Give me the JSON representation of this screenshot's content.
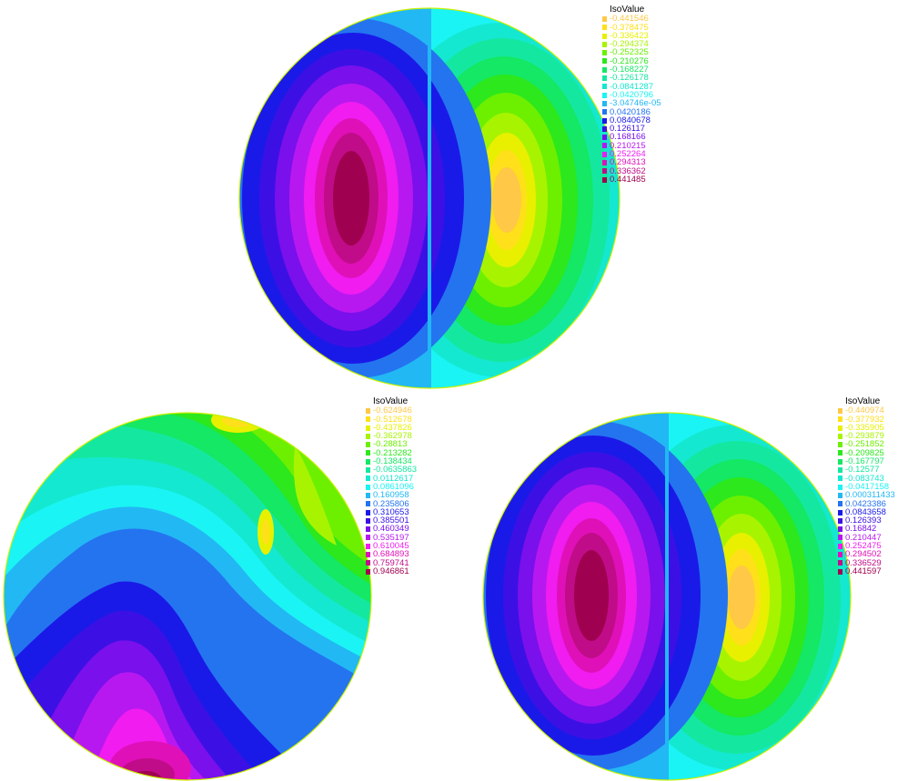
{
  "plots": [
    {
      "legend_title": "IsoValue",
      "legend": [
        {
          "label": "-0.441546",
          "color": "#ffc846"
        },
        {
          "label": "-0.378475",
          "color": "#ffe01a"
        },
        {
          "label": "-0.336423",
          "color": "#e8f000"
        },
        {
          "label": "-0.294374",
          "color": "#a8f400"
        },
        {
          "label": "-0.252325",
          "color": "#6cf000"
        },
        {
          "label": "-0.210276",
          "color": "#2ce81c"
        },
        {
          "label": "-0.168227",
          "color": "#14e864"
        },
        {
          "label": "-0.126178",
          "color": "#14e8a0"
        },
        {
          "label": "-0.0841287",
          "color": "#14e8d0"
        },
        {
          "label": "-0.0420796",
          "color": "#1af4f4"
        },
        {
          "label": "-3.04746e-05",
          "color": "#22b8f4"
        },
        {
          "label": "0.0420186",
          "color": "#2474f0"
        },
        {
          "label": "0.0840678",
          "color": "#1a1ae8"
        },
        {
          "label": "0.126117",
          "color": "#3c10e4"
        },
        {
          "label": "0.168166",
          "color": "#7a10ec"
        },
        {
          "label": "0.210215",
          "color": "#b818f0"
        },
        {
          "label": "0.252264",
          "color": "#f01cf0"
        },
        {
          "label": "0.294313",
          "color": "#e010b8"
        },
        {
          "label": "0.336362",
          "color": "#c00c88"
        },
        {
          "label": "0.441485",
          "color": "#a00050"
        }
      ]
    },
    {
      "legend_title": "IsoValue",
      "legend": [
        {
          "label": "-0.624946",
          "color": "#ffc846"
        },
        {
          "label": "-0.512678",
          "color": "#ffe01a"
        },
        {
          "label": "-0.437826",
          "color": "#e8f000"
        },
        {
          "label": "-0.362978",
          "color": "#a8f400"
        },
        {
          "label": "-0.28813",
          "color": "#6cf000"
        },
        {
          "label": "-0.213282",
          "color": "#2ce81c"
        },
        {
          "label": "-0.138434",
          "color": "#14e864"
        },
        {
          "label": "-0.0635863",
          "color": "#14e8a0"
        },
        {
          "label": "0.0112617",
          "color": "#14e8d0"
        },
        {
          "label": "0.0861096",
          "color": "#1af4f4"
        },
        {
          "label": "0.160958",
          "color": "#22b8f4"
        },
        {
          "label": "0.235806",
          "color": "#2474f0"
        },
        {
          "label": "0.310653",
          "color": "#1a1ae8"
        },
        {
          "label": "0.385501",
          "color": "#3c10e4"
        },
        {
          "label": "0.460349",
          "color": "#7a10ec"
        },
        {
          "label": "0.535197",
          "color": "#b818f0"
        },
        {
          "label": "0.610045",
          "color": "#f01cf0"
        },
        {
          "label": "0.684893",
          "color": "#e010b8"
        },
        {
          "label": "0.759741",
          "color": "#c00c88"
        },
        {
          "label": "0.946861",
          "color": "#a00050"
        }
      ]
    },
    {
      "legend_title": "IsoValue",
      "legend": [
        {
          "label": "-0.440974",
          "color": "#ffc846"
        },
        {
          "label": "-0.377932",
          "color": "#ffe01a"
        },
        {
          "label": "-0.335905",
          "color": "#e8f000"
        },
        {
          "label": "-0.293879",
          "color": "#a8f400"
        },
        {
          "label": "-0.251852",
          "color": "#6cf000"
        },
        {
          "label": "-0.209825",
          "color": "#2ce81c"
        },
        {
          "label": "-0.167797",
          "color": "#14e864"
        },
        {
          "label": "-0.12577",
          "color": "#14e8a0"
        },
        {
          "label": "-0.083743",
          "color": "#14e8d0"
        },
        {
          "label": "-0.0417158",
          "color": "#1af4f4"
        },
        {
          "label": "0.000311433",
          "color": "#22b8f4"
        },
        {
          "label": "0.0423386",
          "color": "#2474f0"
        },
        {
          "label": "0.0843658",
          "color": "#1a1ae8"
        },
        {
          "label": "0.126393",
          "color": "#3c10e4"
        },
        {
          "label": "0.16842",
          "color": "#7a10ec"
        },
        {
          "label": "0.210447",
          "color": "#b818f0"
        },
        {
          "label": "0.252475",
          "color": "#f01cf0"
        },
        {
          "label": "0.294502",
          "color": "#e010b8"
        },
        {
          "label": "0.336529",
          "color": "#c00c88"
        },
        {
          "label": "0.441597",
          "color": "#a00050"
        }
      ]
    }
  ]
}
